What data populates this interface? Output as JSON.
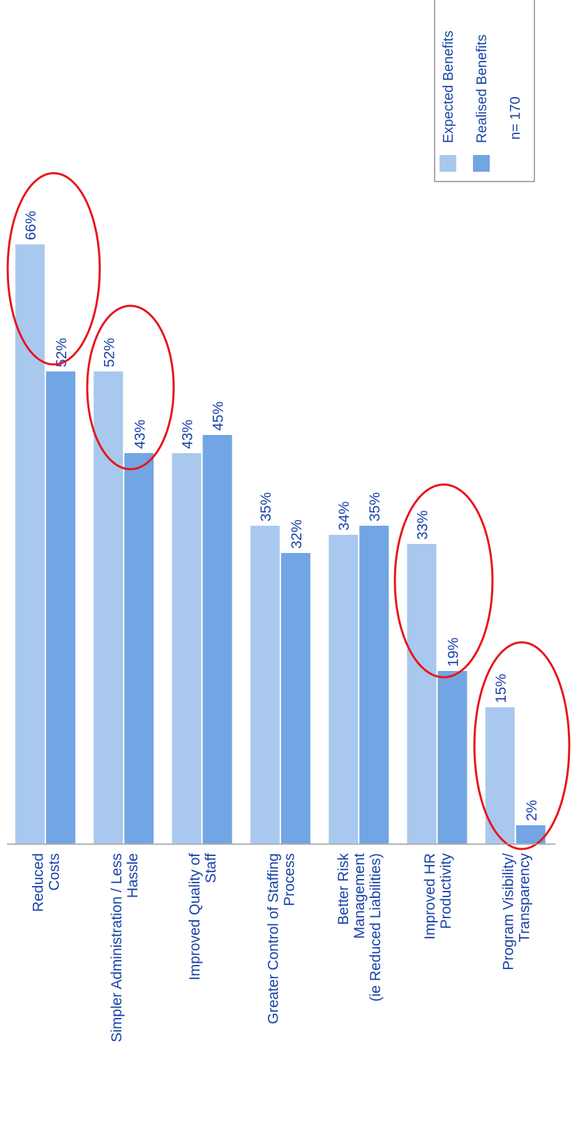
{
  "chart_data": {
    "type": "bar",
    "orientation": "rotated-90",
    "categories": [
      [
        "Reduced",
        "Costs"
      ],
      [
        "Simpler Administration / Less",
        "Hassle"
      ],
      [
        "Improved Quality of",
        "Staff"
      ],
      [
        "Greater Control of Staffing",
        "Process"
      ],
      [
        "Better Risk",
        "Management",
        "(ie Reduced Liabilities)"
      ],
      [
        "Improved HR",
        "Productivity"
      ],
      [
        "Program Visibility/",
        "Transparency"
      ]
    ],
    "series": [
      {
        "name": "Expected Benefits",
        "color": "#a9c8ee",
        "values": [
          66,
          52,
          43,
          35,
          34,
          33,
          15
        ],
        "labels": [
          "66%",
          "52%",
          "43%",
          "35%",
          "34%",
          "33%",
          "15%"
        ]
      },
      {
        "name": "Realised Benefits",
        "color": "#72a5e3",
        "values": [
          52,
          43,
          45,
          32,
          35,
          19,
          2
        ],
        "labels": [
          "52%",
          "43%",
          "45%",
          "32%",
          "35%",
          "19%",
          "2%"
        ]
      }
    ],
    "ylim": [
      0,
      75
    ],
    "grid": false,
    "legend_placement": "top-right",
    "highlighted_categories": [
      0,
      1,
      5,
      6
    ],
    "highlight_color": "#e8141b"
  },
  "legend": {
    "note": "n= 170"
  }
}
